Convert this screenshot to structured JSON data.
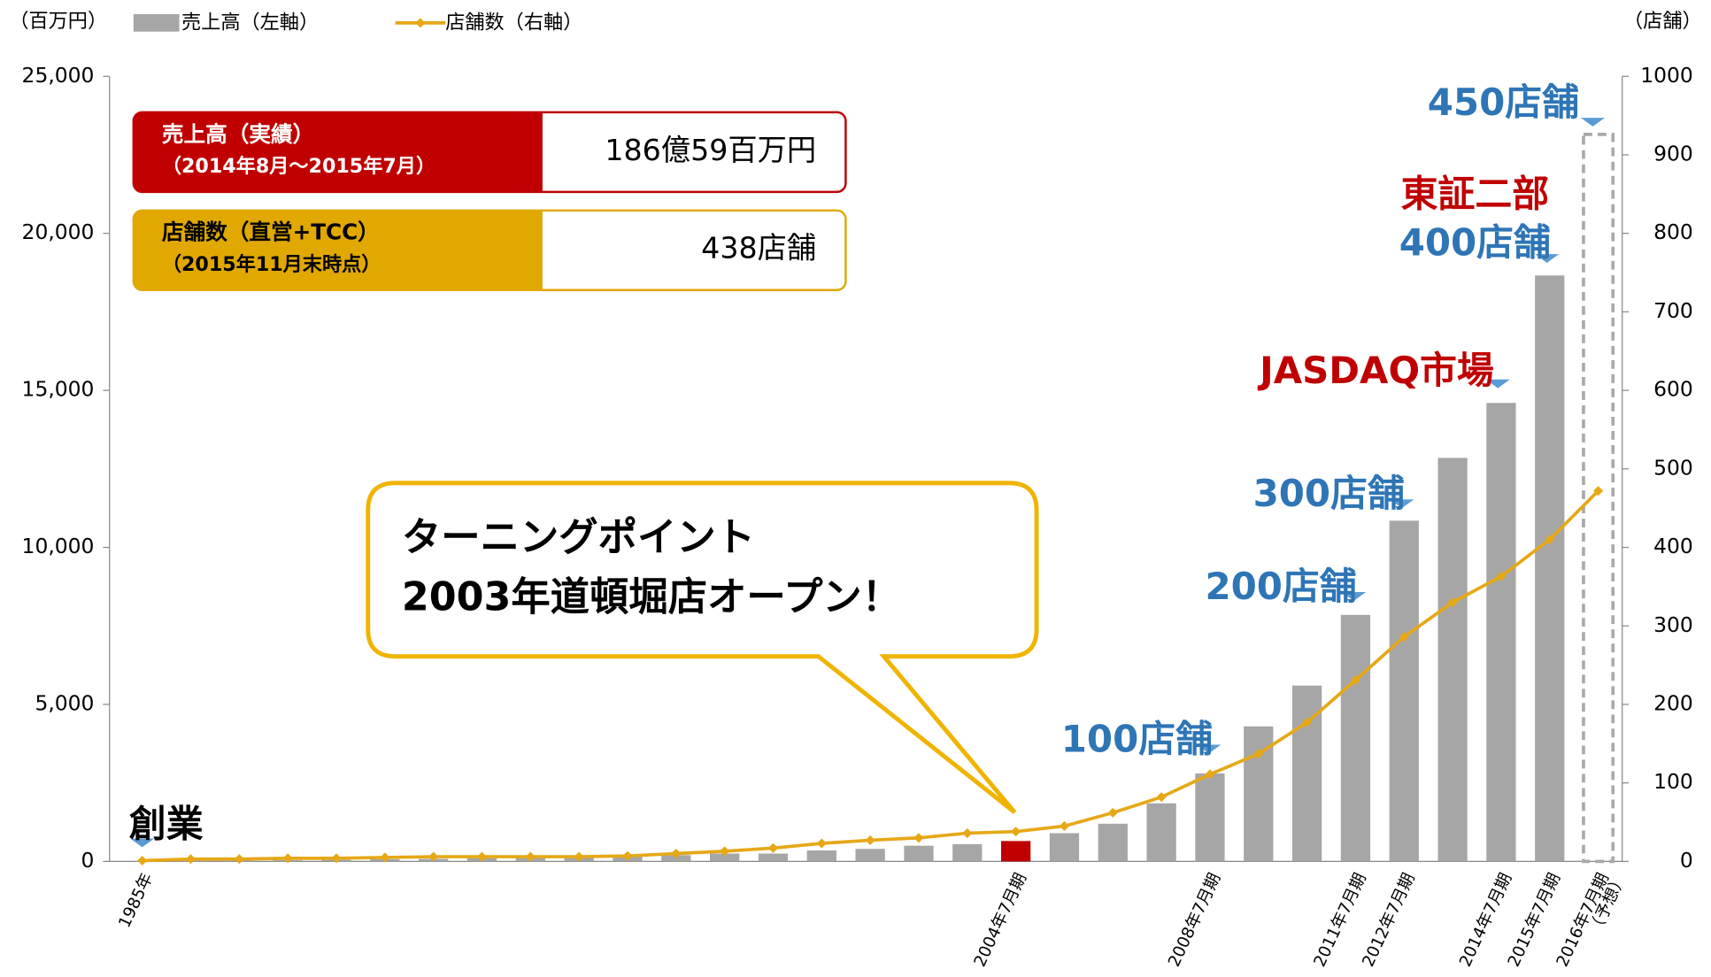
{
  "chart_data": {
    "type": "bar_line",
    "left_unit": "（百万円）",
    "right_unit": "（店舗）",
    "categories": [
      "1985年",
      null,
      null,
      null,
      null,
      null,
      null,
      null,
      null,
      null,
      null,
      null,
      null,
      null,
      null,
      null,
      null,
      null,
      "2004年7月期",
      null,
      null,
      null,
      "2008年7月期",
      null,
      null,
      "2011年7月期",
      "2012年7月期",
      null,
      "2014年7月期",
      "2015年7月期",
      "2016年7月期"
    ],
    "forecast_label": "（予想）",
    "series": [
      {
        "name": "売上高（左軸）",
        "type": "bar",
        "axis": "y",
        "color": "#a6a6a6",
        "colors": [
          "#a6a6a6",
          "#a6a6a6",
          "#a6a6a6",
          "#a6a6a6",
          "#a6a6a6",
          "#a6a6a6",
          "#a6a6a6",
          "#a6a6a6",
          "#a6a6a6",
          "#a6a6a6",
          "#a6a6a6",
          "#a6a6a6",
          "#a6a6a6",
          "#a6a6a6",
          "#a6a6a6",
          "#a6a6a6",
          "#a6a6a6",
          "#a6a6a6",
          "#c00000",
          "#a6a6a6",
          "#a6a6a6",
          "#a6a6a6",
          "#a6a6a6",
          "#a6a6a6",
          "#a6a6a6",
          "#a6a6a6",
          "#a6a6a6",
          "#a6a6a6",
          "#a6a6a6",
          "#a6a6a6",
          "none"
        ],
        "values": [
          0,
          20,
          30,
          40,
          50,
          70,
          80,
          100,
          120,
          140,
          160,
          200,
          250,
          250,
          350,
          400,
          500,
          550,
          650,
          900,
          1200,
          1850,
          2800,
          4300,
          5600,
          7850,
          10850,
          12850,
          14600,
          18659,
          23150
        ]
      },
      {
        "name": "店舗数（右軸）",
        "type": "line",
        "axis": "y2",
        "color": "#e6a817",
        "values": [
          1,
          3,
          3,
          4,
          4,
          5,
          6,
          6,
          6,
          6,
          7,
          10,
          13,
          17,
          23,
          27,
          30,
          36,
          38,
          45,
          62,
          82,
          111,
          137,
          177,
          231,
          286,
          330,
          363,
          410,
          472
        ]
      }
    ],
    "ylim": [
      0,
      25000
    ],
    "yticks": [
      0,
      {
        "value": 5000,
        "label": "5,000"
      },
      {
        "value": 10000,
        "label": "10,000"
      },
      {
        "value": 15000,
        "label": "15,000"
      },
      {
        "value": 20000,
        "label": "20,000"
      },
      {
        "value": 25000,
        "label": "25,000"
      }
    ],
    "y2lim": [
      0,
      1000
    ],
    "y2ticks": [
      0,
      100,
      200,
      300,
      400,
      500,
      600,
      700,
      800,
      900,
      1000
    ],
    "annotations": [
      {
        "text": "創業",
        "color": "#000000"
      },
      {
        "text": "100店舗",
        "color": "#2e75b6"
      },
      {
        "text": "200店舗",
        "color": "#2e75b6"
      },
      {
        "text": "300店舗",
        "color": "#2e75b6"
      },
      {
        "text": "JASDAQ市場",
        "color": "#c00000"
      },
      {
        "text": "東証二部",
        "color": "#c00000"
      },
      {
        "text": "400店舗",
        "color": "#2e75b6"
      },
      {
        "text": "450店舗",
        "color": "#2e75b6"
      }
    ],
    "info_boxes": [
      {
        "title": "売上高（実績）",
        "sub": "（2014年8月～2015年7月）",
        "value": "186億59百万円",
        "color": "#c00000"
      },
      {
        "title": "店舗数（直営+TCC）",
        "sub": "（2015年11月末時点）",
        "value": "438店舗",
        "color": "#e0a800"
      }
    ],
    "callout": [
      "ターニングポイント",
      "2003年道頓堀店オープン！"
    ]
  }
}
